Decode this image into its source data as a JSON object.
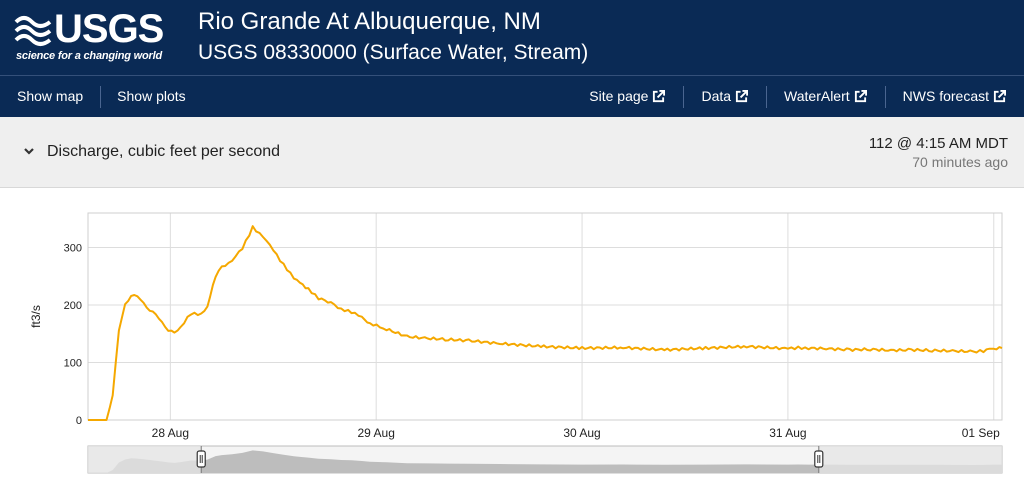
{
  "header": {
    "logo_text": "USGS",
    "logo_tagline": "science for a changing world",
    "site_name": "Rio Grande At Albuquerque, NM",
    "site_id": "USGS 08330000 (Surface Water, Stream)",
    "bg_color": "#0a2a55"
  },
  "nav": {
    "left": [
      {
        "label": "Show map"
      },
      {
        "label": "Show plots"
      }
    ],
    "right": [
      {
        "label": "Site page",
        "icon": "external-link-icon"
      },
      {
        "label": "Data",
        "icon": "external-link-icon"
      },
      {
        "label": "WaterAlert",
        "icon": "external-link-icon"
      },
      {
        "label": "NWS forecast",
        "icon": "external-link-icon"
      }
    ]
  },
  "parameter": {
    "expand_icon": "chevron-down-icon",
    "label": "Discharge, cubic feet per second",
    "latest_value": "112 @ 4:15 AM MDT",
    "latest_ago": "70 minutes ago"
  },
  "chart_data": {
    "type": "line",
    "title": "",
    "xlabel": "",
    "ylabel": "ft3/s",
    "ylim": [
      0,
      360
    ],
    "xlim": [
      27.6,
      32.04
    ],
    "y_ticks": [
      "0",
      "100",
      "200",
      "300"
    ],
    "x_ticks": [
      {
        "value": 28,
        "label": "28 Aug"
      },
      {
        "value": 29,
        "label": "29 Aug"
      },
      {
        "value": 30,
        "label": "30 Aug"
      },
      {
        "value": 31,
        "label": "31 Aug"
      },
      {
        "value": 32,
        "label": "01 Sep"
      }
    ],
    "grid": true,
    "line_color": "#f5a800",
    "series": [
      {
        "x": [
          27.6,
          27.69,
          27.72,
          27.75,
          27.78,
          27.81,
          27.84,
          27.87,
          27.9,
          27.93,
          27.96,
          27.99,
          28.02,
          28.05,
          28.1,
          28.15,
          28.18,
          28.22,
          28.25,
          28.3,
          28.35,
          28.4,
          28.45,
          28.5,
          28.55,
          28.6,
          28.63,
          28.67,
          28.72,
          28.78,
          28.83,
          28.88,
          28.93,
          28.97,
          29.05,
          29.15,
          29.25,
          29.35,
          29.45,
          29.6,
          29.8,
          30.0,
          30.2,
          30.4,
          30.6,
          30.8,
          31.0,
          31.05,
          31.1,
          31.2,
          31.3,
          31.4,
          31.5,
          31.6,
          31.7,
          31.8,
          31.9,
          31.95,
          31.98,
          32.0,
          32.04
        ],
        "y": [
          0,
          0,
          45,
          155,
          200,
          218,
          214,
          203,
          192,
          182,
          170,
          157,
          150,
          162,
          185,
          183,
          198,
          250,
          265,
          278,
          298,
          335,
          320,
          295,
          270,
          248,
          238,
          228,
          212,
          204,
          193,
          188,
          178,
          168,
          158,
          145,
          142,
          140,
          138,
          133,
          128,
          125,
          126,
          122,
          125,
          128,
          124,
          126,
          125,
          124,
          122,
          123,
          121,
          122,
          121,
          120,
          119,
          120,
          122,
          124,
          125
        ]
      }
    ],
    "brush": {
      "start": 28.15,
      "end": 31.15
    }
  }
}
